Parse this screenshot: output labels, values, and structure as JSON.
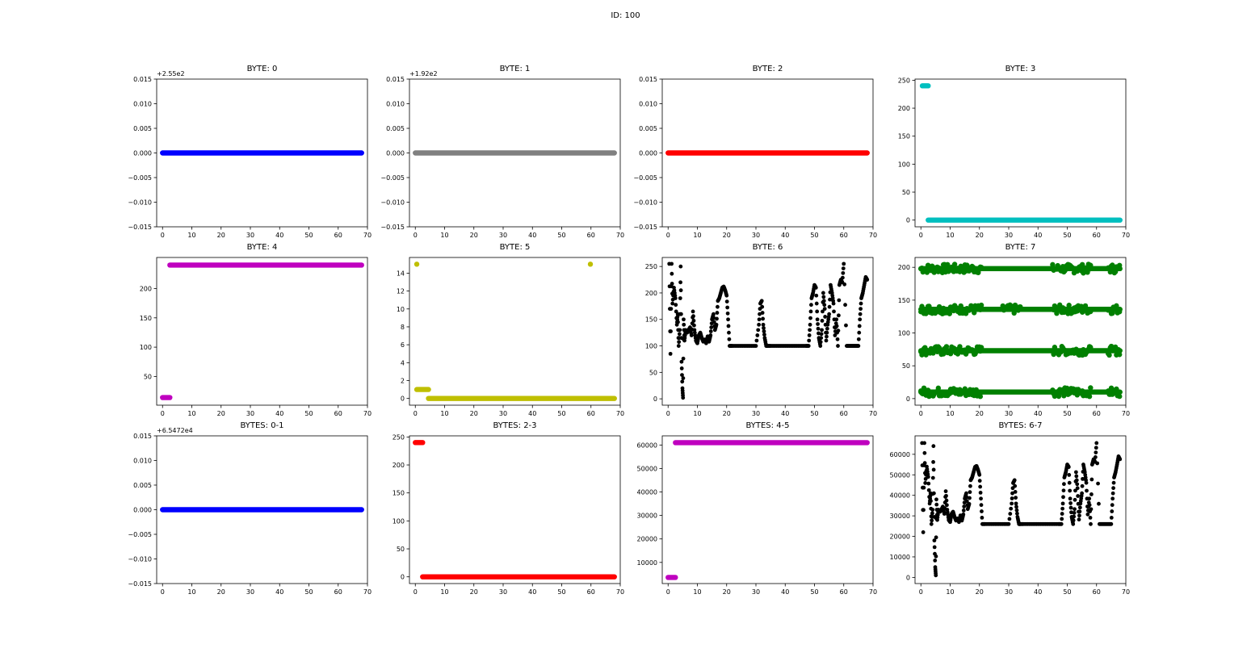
{
  "figure": {
    "title": "ID: 100"
  },
  "chart_data": [
    {
      "type": "scatter",
      "title": "BYTE: 0",
      "color": "#0000ff",
      "offset_label": "+2.55e2",
      "xlim": [
        -2,
        70
      ],
      "ylim": [
        -0.015,
        0.015
      ],
      "xticks": [
        0,
        10,
        20,
        30,
        40,
        50,
        60,
        70
      ],
      "yticks": [
        -0.015,
        -0.01,
        -0.005,
        0.0,
        0.005,
        0.01,
        0.015
      ],
      "ytick_labels": [
        "−0.015",
        "−0.010",
        "−0.005",
        "0.000",
        "0.005",
        "0.010",
        "0.015"
      ],
      "segments": [
        {
          "x0": 0,
          "x1": 68,
          "y": 0
        }
      ]
    },
    {
      "type": "scatter",
      "title": "BYTE: 1",
      "color": "#808080",
      "offset_label": "+1.92e2",
      "xlim": [
        -2,
        70
      ],
      "ylim": [
        -0.015,
        0.015
      ],
      "xticks": [
        0,
        10,
        20,
        30,
        40,
        50,
        60,
        70
      ],
      "yticks": [
        -0.015,
        -0.01,
        -0.005,
        0.0,
        0.005,
        0.01,
        0.015
      ],
      "ytick_labels": [
        "−0.015",
        "−0.010",
        "−0.005",
        "0.000",
        "0.005",
        "0.010",
        "0.015"
      ],
      "segments": [
        {
          "x0": 0,
          "x1": 68,
          "y": 0
        }
      ]
    },
    {
      "type": "scatter",
      "title": "BYTE: 2",
      "color": "#ff0000",
      "offset_label": "",
      "xlim": [
        -2,
        70
      ],
      "ylim": [
        -0.015,
        0.015
      ],
      "xticks": [
        0,
        10,
        20,
        30,
        40,
        50,
        60,
        70
      ],
      "yticks": [
        -0.015,
        -0.01,
        -0.005,
        0.0,
        0.005,
        0.01,
        0.015
      ],
      "ytick_labels": [
        "−0.015",
        "−0.010",
        "−0.005",
        "0.000",
        "0.005",
        "0.010",
        "0.015"
      ],
      "segments": [
        {
          "x0": 0,
          "x1": 68,
          "y": 0
        }
      ]
    },
    {
      "type": "scatter",
      "title": "BYTE: 3",
      "color": "#00bfbf",
      "offset_label": "",
      "xlim": [
        -2,
        70
      ],
      "ylim": [
        -12,
        252
      ],
      "xticks": [
        0,
        10,
        20,
        30,
        40,
        50,
        60,
        70
      ],
      "yticks": [
        0,
        50,
        100,
        150,
        200,
        250
      ],
      "segments": [
        {
          "x0": 0.5,
          "x1": 2.5,
          "y": 240
        },
        {
          "x0": 2.5,
          "x1": 68,
          "y": 0
        }
      ]
    },
    {
      "type": "scatter",
      "title": "BYTE: 4",
      "color": "#bf00bf",
      "offset_label": "",
      "xlim": [
        -2,
        70
      ],
      "ylim": [
        1,
        253
      ],
      "xticks": [
        0,
        10,
        20,
        30,
        40,
        50,
        60,
        70
      ],
      "yticks": [
        50,
        100,
        150,
        200
      ],
      "segments": [
        {
          "x0": 0,
          "x1": 2.5,
          "y": 14
        },
        {
          "x0": 2.5,
          "x1": 68,
          "y": 240
        }
      ]
    },
    {
      "type": "scatter",
      "title": "BYTE: 5",
      "color": "#bfbf00",
      "offset_label": "",
      "xlim": [
        -2,
        70
      ],
      "ylim": [
        -0.75,
        15.75
      ],
      "xticks": [
        0,
        10,
        20,
        30,
        40,
        50,
        60,
        70
      ],
      "yticks": [
        0,
        2,
        4,
        6,
        8,
        10,
        12,
        14
      ],
      "segments": [
        {
          "x0": 0.5,
          "x1": 4.5,
          "y": 1
        },
        {
          "x0": 4.5,
          "x1": 68,
          "y": 0
        },
        {
          "x0": 0.5,
          "x1": 0.8,
          "y": 15
        },
        {
          "x0": 59.8,
          "x1": 60.1,
          "y": 15
        }
      ]
    },
    {
      "type": "scatter",
      "title": "BYTE: 6",
      "color": "#000000",
      "offset_label": "",
      "xlim": [
        -2,
        70
      ],
      "ylim": [
        -12,
        267
      ],
      "xticks": [
        0,
        10,
        20,
        30,
        40,
        50,
        60,
        70
      ],
      "yticks": [
        0,
        50,
        100,
        150,
        200,
        250
      ],
      "series": [
        {
          "x": [
            0.4,
            1.2,
            0.8,
            1.5,
            2,
            2.5,
            3,
            3.3,
            3.6,
            4,
            4.3,
            4.6,
            4.9,
            5.1,
            5.3,
            5.6,
            6,
            6.5,
            7,
            7.5,
            8,
            8.5,
            9,
            9.5,
            10,
            10.5,
            11,
            11.5,
            12,
            12.5,
            13,
            13.5,
            14,
            14.5,
            15,
            15.5,
            16,
            16.5,
            17,
            17.5,
            18,
            18.5,
            19,
            19.5,
            20,
            20.5,
            21,
            22,
            24,
            26,
            28,
            30,
            31,
            31.5,
            32,
            32.5,
            33,
            33.5,
            34,
            35,
            37,
            39,
            41,
            43,
            45,
            47,
            48,
            48.5,
            49,
            49.5,
            50,
            50.5,
            51,
            51.5,
            52,
            52.5,
            53,
            53.5,
            54,
            54.5,
            55,
            55.5,
            56,
            56.5,
            57,
            57.5,
            58,
            58.5,
            59,
            59.5,
            60,
            61,
            62,
            63,
            64,
            65,
            65.5,
            66,
            66.5,
            67,
            67.5,
            68
          ],
          "y": [
            255,
            255,
            85,
            180,
            210,
            190,
            140,
            160,
            100,
            130,
            250,
            70,
            20,
            2,
            150,
            110,
            130,
            125,
            130,
            135,
            120,
            165,
            130,
            110,
            105,
            120,
            125,
            115,
            108,
            112,
            105,
            118,
            108,
            120,
            150,
            160,
            130,
            140,
            185,
            190,
            200,
            210,
            212,
            205,
            195,
            150,
            100,
            100,
            100,
            100,
            100,
            100,
            140,
            180,
            185,
            140,
            115,
            100,
            100,
            100,
            100,
            100,
            100,
            100,
            100,
            100,
            100,
            140,
            190,
            200,
            215,
            210,
            150,
            115,
            100,
            130,
            200,
            170,
            110,
            140,
            160,
            215,
            200,
            180,
            120,
            150,
            100,
            215,
            225,
            220,
            255,
            100,
            100,
            100,
            100,
            100,
            150,
            190,
            200,
            215,
            230,
            225
          ]
        }
      ]
    },
    {
      "type": "scatter",
      "title": "BYTE: 7",
      "color": "#008000",
      "offset_label": "",
      "xlim": [
        -2,
        70
      ],
      "ylim": [
        -10,
        215
      ],
      "xticks": [
        0,
        10,
        20,
        30,
        40,
        50,
        60,
        70
      ],
      "yticks": [
        0,
        50,
        100,
        150,
        200
      ],
      "bands": [
        {
          "x0": 0,
          "x1": 68,
          "y": 198,
          "noise_segments": [
            [
              0,
              21
            ],
            [
              45,
              58
            ],
            [
              64,
              68
            ]
          ]
        },
        {
          "x0": 0,
          "x1": 68,
          "y": 136,
          "noise_segments": [
            [
              0,
              21
            ],
            [
              28,
              34
            ],
            [
              45,
              58
            ],
            [
              64,
              68
            ]
          ]
        },
        {
          "x0": 0,
          "x1": 68,
          "y": 73,
          "noise_segments": [
            [
              0,
              21
            ],
            [
              45,
              58
            ],
            [
              64,
              68
            ]
          ]
        },
        {
          "x0": 0,
          "x1": 68,
          "y": 10,
          "noise_segments": [
            [
              0,
              21
            ],
            [
              45,
              58
            ],
            [
              64,
              68
            ]
          ]
        }
      ]
    },
    {
      "type": "scatter",
      "title": "BYTES: 0-1",
      "color": "#0000ff",
      "offset_label": "+6.5472e4",
      "xlim": [
        -2,
        70
      ],
      "ylim": [
        -0.015,
        0.015
      ],
      "xticks": [
        0,
        10,
        20,
        30,
        40,
        50,
        60,
        70
      ],
      "yticks": [
        -0.015,
        -0.01,
        -0.005,
        0.0,
        0.005,
        0.01,
        0.015
      ],
      "ytick_labels": [
        "−0.015",
        "−0.010",
        "−0.005",
        "0.000",
        "0.005",
        "0.010",
        "0.015"
      ],
      "segments": [
        {
          "x0": 0,
          "x1": 68,
          "y": 0
        }
      ]
    },
    {
      "type": "scatter",
      "title": "BYTES: 2-3",
      "color": "#ff0000",
      "offset_label": "",
      "xlim": [
        -2,
        70
      ],
      "ylim": [
        -12,
        252
      ],
      "xticks": [
        0,
        10,
        20,
        30,
        40,
        50,
        60,
        70
      ],
      "yticks": [
        0,
        50,
        100,
        150,
        200,
        250
      ],
      "segments": [
        {
          "x0": 0,
          "x1": 2.5,
          "y": 240
        },
        {
          "x0": 2.5,
          "x1": 68,
          "y": 0
        }
      ]
    },
    {
      "type": "scatter",
      "title": "BYTES: 4-5",
      "color": "#bf00bf",
      "offset_label": "",
      "xlim": [
        -2,
        70
      ],
      "ylim": [
        1000,
        63900
      ],
      "xticks": [
        0,
        10,
        20,
        30,
        40,
        50,
        60,
        70
      ],
      "yticks": [
        10000,
        20000,
        30000,
        40000,
        50000,
        60000
      ],
      "segments": [
        {
          "x0": 0,
          "x1": 2.5,
          "y": 3600
        },
        {
          "x0": 2.5,
          "x1": 68,
          "y": 61000
        }
      ]
    },
    {
      "type": "scatter",
      "title": "BYTES: 6-7",
      "color": "#000000",
      "offset_label": "",
      "xlim": [
        -2,
        70
      ],
      "ylim": [
        -3000,
        69000
      ],
      "xticks": [
        0,
        10,
        20,
        30,
        40,
        50,
        60,
        70
      ],
      "yticks": [
        0,
        10000,
        20000,
        30000,
        40000,
        50000,
        60000
      ],
      "series": [
        {
          "x": [
            0.4,
            1.2,
            0.8,
            1.5,
            2,
            2.5,
            3,
            3.3,
            3.6,
            4,
            4.3,
            4.6,
            4.9,
            5.1,
            5.3,
            5.6,
            6,
            6.5,
            7,
            7.5,
            8,
            8.5,
            9,
            9.5,
            10,
            10.5,
            11,
            11.5,
            12,
            12.5,
            13,
            13.5,
            14,
            14.5,
            15,
            15.5,
            16,
            16.5,
            17,
            17.5,
            18,
            18.5,
            19,
            19.5,
            20,
            20.5,
            21,
            22,
            24,
            26,
            28,
            30,
            31,
            31.5,
            32,
            32.5,
            33,
            33.5,
            34,
            35,
            37,
            39,
            41,
            43,
            45,
            47,
            48,
            48.5,
            49,
            49.5,
            50,
            50.5,
            51,
            51.5,
            52,
            52.5,
            53,
            53.5,
            54,
            54.5,
            55,
            55.5,
            56,
            56.5,
            57,
            57.5,
            58,
            58.5,
            59,
            59.5,
            60,
            61,
            62,
            63,
            64,
            65,
            65.5,
            66,
            66.5,
            67,
            67.5,
            68
          ],
          "y": [
            65500,
            65500,
            22000,
            46000,
            54000,
            49000,
            36000,
            41000,
            26000,
            33000,
            64000,
            18000,
            5000,
            1000,
            38000,
            28000,
            33000,
            32000,
            33000,
            34500,
            31000,
            42000,
            33000,
            28000,
            27000,
            31000,
            32000,
            29500,
            27700,
            28700,
            27000,
            30200,
            27700,
            30700,
            38400,
            41000,
            33300,
            35800,
            47400,
            48700,
            51300,
            53800,
            54300,
            52500,
            50000,
            38400,
            26000,
            26000,
            26000,
            26000,
            26000,
            26000,
            36000,
            46000,
            47400,
            36000,
            29500,
            26000,
            26000,
            26000,
            26000,
            26000,
            26000,
            26000,
            26000,
            26000,
            26000,
            36000,
            48700,
            51300,
            55000,
            53800,
            38400,
            29500,
            26000,
            33300,
            51300,
            43500,
            28200,
            36000,
            41000,
            55000,
            51300,
            46100,
            30700,
            38400,
            26000,
            55000,
            57600,
            56300,
            65500,
            26000,
            26000,
            26000,
            26000,
            26000,
            38400,
            48700,
            51300,
            55000,
            59000,
            57600
          ]
        }
      ]
    }
  ]
}
